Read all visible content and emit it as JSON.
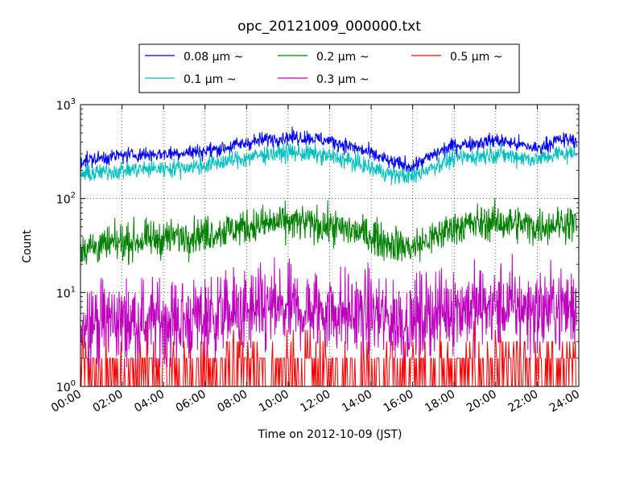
{
  "chart_data": {
    "type": "line",
    "title": "opc_20121009_000000.txt",
    "xlabel": "Time on 2012-10-09 (JST)",
    "ylabel": "Count",
    "x_ticks": [
      "00:00",
      "02:00",
      "04:00",
      "06:00",
      "08:00",
      "10:00",
      "12:00",
      "14:00",
      "16:00",
      "18:00",
      "20:00",
      "22:00",
      "24:00"
    ],
    "x_range_hours": [
      0,
      24
    ],
    "y_scale": "log",
    "ylim": [
      1,
      1000
    ],
    "y_ticks": [
      {
        "base": "10",
        "exp": "0"
      },
      {
        "base": "10",
        "exp": "1"
      },
      {
        "base": "10",
        "exp": "2"
      },
      {
        "base": "10",
        "exp": "3"
      }
    ],
    "grid": true,
    "legend_position": "top-center",
    "x_hours": [
      0,
      1,
      2,
      3,
      4,
      5,
      6,
      7,
      8,
      9,
      10,
      11,
      12,
      13,
      14,
      15,
      16,
      17,
      18,
      19,
      20,
      21,
      22,
      23
    ],
    "series": [
      {
        "name": "0.08 μm ~",
        "color": "#0000ff",
        "noise": 0.05,
        "values": [
          250,
          270,
          290,
          295,
          300,
          310,
          320,
          350,
          390,
          430,
          450,
          445,
          410,
          360,
          300,
          240,
          220,
          290,
          370,
          390,
          420,
          380,
          340,
          420
        ]
      },
      {
        "name": "0.1 μm ~",
        "color": "#00bfbf",
        "noise": 0.06,
        "values": [
          180,
          190,
          200,
          205,
          210,
          215,
          225,
          250,
          270,
          300,
          310,
          300,
          280,
          250,
          210,
          180,
          170,
          220,
          270,
          280,
          300,
          280,
          260,
          300
        ]
      },
      {
        "name": "0.2 μm ~",
        "color": "#008000",
        "noise": 0.12,
        "values": [
          30,
          31,
          34,
          36,
          38,
          40,
          42,
          46,
          50,
          54,
          56,
          54,
          50,
          46,
          40,
          33,
          30,
          38,
          50,
          54,
          56,
          54,
          50,
          55
        ]
      },
      {
        "name": "0.3 μm ~",
        "color": "#bf00bf",
        "noise": 0.28,
        "values": [
          5,
          5,
          5,
          5,
          5,
          5,
          5.5,
          6,
          6,
          6.5,
          6.5,
          6.5,
          6.5,
          6,
          6,
          5,
          5,
          6,
          7,
          7,
          7,
          7,
          6.5,
          7
        ]
      },
      {
        "name": "0.5 μm ~",
        "color": "#ff0000",
        "noise": 0,
        "values": [
          1,
          1,
          1,
          1,
          1,
          1,
          1,
          1,
          1,
          1,
          1,
          1,
          1,
          1,
          1,
          1,
          1,
          1,
          1,
          1,
          1,
          1,
          1,
          1
        ]
      }
    ]
  }
}
